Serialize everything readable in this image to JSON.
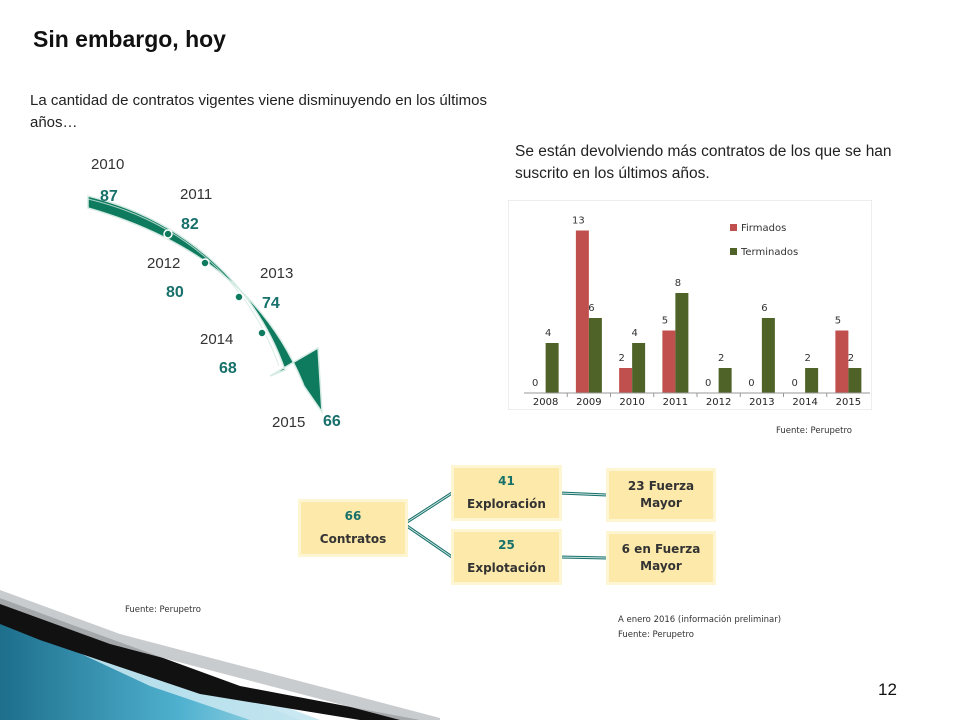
{
  "title": "Sin embargo, hoy",
  "left_subtitle": "La cantidad de contratos vigentes viene disminuyendo en los últimos años…",
  "right_subtitle": "Se están devolviendo más contratos de los que se han suscrito en los últimos años.",
  "timeline": [
    {
      "year": "2010",
      "value": "87"
    },
    {
      "year": "2011",
      "value": "82"
    },
    {
      "year": "2012",
      "value": "80"
    },
    {
      "year": "2013",
      "value": "74"
    },
    {
      "year": "2014",
      "value": "68"
    },
    {
      "year": "2015",
      "value": "66"
    }
  ],
  "chart_data": {
    "type": "bar",
    "categories": [
      "2008",
      "2009",
      "2010",
      "2011",
      "2012",
      "2013",
      "2014",
      "2015"
    ],
    "series": [
      {
        "name": "Firmados",
        "color": "#c0504d",
        "values": [
          0,
          13,
          2,
          5,
          0,
          0,
          0,
          5
        ]
      },
      {
        "name": "Terminados",
        "color": "#4f6228",
        "values": [
          4,
          6,
          4,
          8,
          2,
          6,
          2,
          2
        ]
      }
    ],
    "ylim": [
      0,
      14
    ],
    "grid": false,
    "legend": "top-right",
    "data_labels": true
  },
  "chart_source": "Fuente: Perupetro",
  "tree": {
    "root": {
      "number": "66",
      "label": "Contratos"
    },
    "exploracion": {
      "number": "41",
      "label": "Exploración"
    },
    "explotacion": {
      "number": "25",
      "label": "Explotación"
    },
    "fuerza1": "23  Fuerza Mayor",
    "fuerza2": "6 en Fuerza Mayor"
  },
  "left_source": "Fuente: Perupetro",
  "tree_note": "A enero 2016 (información preliminar)",
  "tree_source": "Fuente: Perupetro",
  "page_number": "12"
}
